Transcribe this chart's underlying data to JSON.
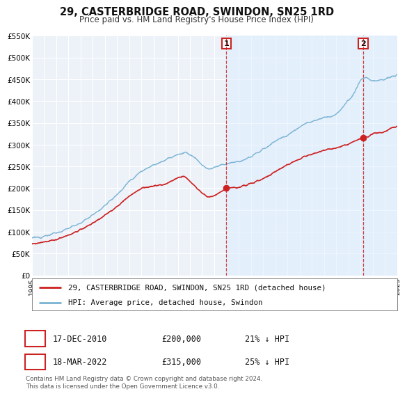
{
  "title": "29, CASTERBRIDGE ROAD, SWINDON, SN25 1RD",
  "subtitle": "Price paid vs. HM Land Registry's House Price Index (HPI)",
  "xlim": [
    1995,
    2025
  ],
  "ylim": [
    0,
    550000
  ],
  "yticks": [
    0,
    50000,
    100000,
    150000,
    200000,
    250000,
    300000,
    350000,
    400000,
    450000,
    500000,
    550000
  ],
  "ytick_labels": [
    "£0",
    "£50K",
    "£100K",
    "£150K",
    "£200K",
    "£250K",
    "£300K",
    "£350K",
    "£400K",
    "£450K",
    "£500K",
    "£550K"
  ],
  "hpi_color": "#7ab3d4",
  "price_color": "#cc2222",
  "marker1_x": 2010.96,
  "marker1_y": 200000,
  "marker2_x": 2022.21,
  "marker2_y": 315000,
  "vline1_x": 2010.96,
  "vline2_x": 2022.21,
  "vline1_color": "#cc2222",
  "vline2_color": "#cc2222",
  "shade_color": "#ddeeff",
  "legend_label_price": "29, CASTERBRIDGE ROAD, SWINDON, SN25 1RD (detached house)",
  "legend_label_hpi": "HPI: Average price, detached house, Swindon",
  "annotation1_date": "17-DEC-2010",
  "annotation1_price": "£200,000",
  "annotation1_hpi": "21% ↓ HPI",
  "annotation2_date": "18-MAR-2022",
  "annotation2_price": "£315,000",
  "annotation2_hpi": "25% ↓ HPI",
  "footer": "Contains HM Land Registry data © Crown copyright and database right 2024.\nThis data is licensed under the Open Government Licence v3.0.",
  "bg_color": "#ffffff",
  "plot_bg_color": "#edf2f9",
  "grid_color": "#ffffff"
}
